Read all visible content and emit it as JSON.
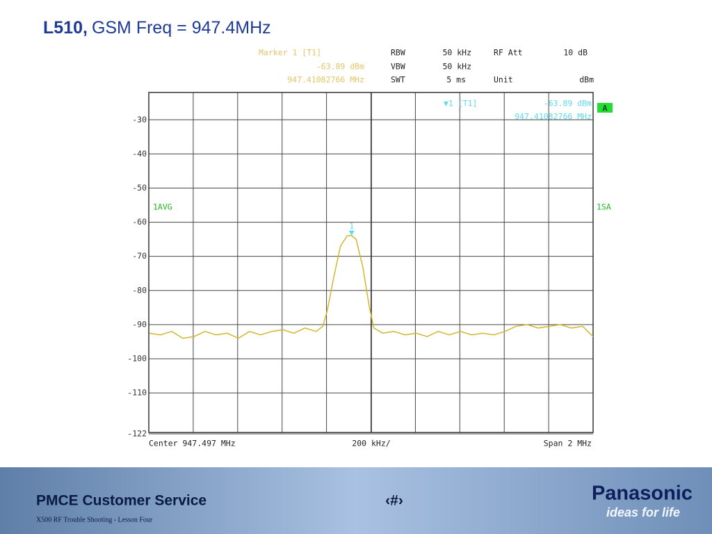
{
  "slide": {
    "title_bold": "L510,",
    "title_rest": "GSM Freq = 947.4MHz",
    "footer_left": "PMCE Customer Service",
    "footer_page": "‹#›",
    "footer_sub": "X500 RF Trouble Shooting  -  Lesson Four",
    "brand": "Panasonic",
    "slogan": "ideas for life"
  },
  "chart_data": {
    "type": "line",
    "header": {
      "marker_label": "Marker 1 [T1]",
      "marker_level": "-63.89 dBm",
      "marker_freq": "947.41082766 MHz",
      "rbw_label": "RBW",
      "rbw_value": "50 kHz",
      "rfatt_label": "RF Att",
      "rfatt_value": "10 dB",
      "vbw_label": "VBW",
      "vbw_value": "50 kHz",
      "swt_label": "SWT",
      "swt_value": "5 ms",
      "unit_label": "Unit",
      "unit_value": "dBm"
    },
    "plot_labels": {
      "marker_tag": "▼1 [T1]",
      "marker_level": "-63.89 dBm",
      "marker_freq": "947.41082766 MHz",
      "status": "A",
      "trace_mode": "1AVG",
      "trace_type": "1SA",
      "marker_num": "1"
    },
    "x_labels": {
      "center": "Center 947.497 MHz",
      "div": "200 kHz/",
      "span": "Span 2 MHz"
    },
    "x": [
      946.5,
      946.55,
      946.6,
      946.65,
      946.7,
      946.75,
      946.8,
      946.85,
      946.9,
      946.95,
      947.0,
      947.05,
      947.1,
      947.15,
      947.2,
      947.25,
      947.28,
      947.3,
      947.33,
      947.36,
      947.39,
      947.41,
      947.43,
      947.46,
      947.49,
      947.51,
      947.55,
      947.6,
      947.65,
      947.7,
      947.75,
      947.8,
      947.85,
      947.9,
      947.95,
      948.0,
      948.05,
      948.1,
      948.15,
      948.2,
      948.25,
      948.3,
      948.35,
      948.4,
      948.45,
      948.497
    ],
    "values": [
      -92.5,
      -93,
      -92,
      -94,
      -93.5,
      -92,
      -93,
      -92.5,
      -94,
      -92,
      -93,
      -92,
      -91.5,
      -92.5,
      -91,
      -92,
      -90.5,
      -86,
      -76,
      -67,
      -64,
      -63.89,
      -65,
      -73,
      -85,
      -91,
      -92.5,
      -92,
      -93,
      -92.5,
      -93.5,
      -92,
      -93,
      -92,
      -93,
      -92.5,
      -93,
      -92,
      -90.5,
      -90,
      -91,
      -90.5,
      -90,
      -91,
      -90.5,
      -93.5
    ],
    "color": "#d4b62e",
    "xlim": [
      946.497,
      948.497
    ],
    "ylim": [
      -122,
      -22
    ],
    "yticks": [
      -30,
      -40,
      -50,
      -60,
      -70,
      -80,
      -90,
      -100,
      -110,
      -122
    ],
    "grid": true
  }
}
